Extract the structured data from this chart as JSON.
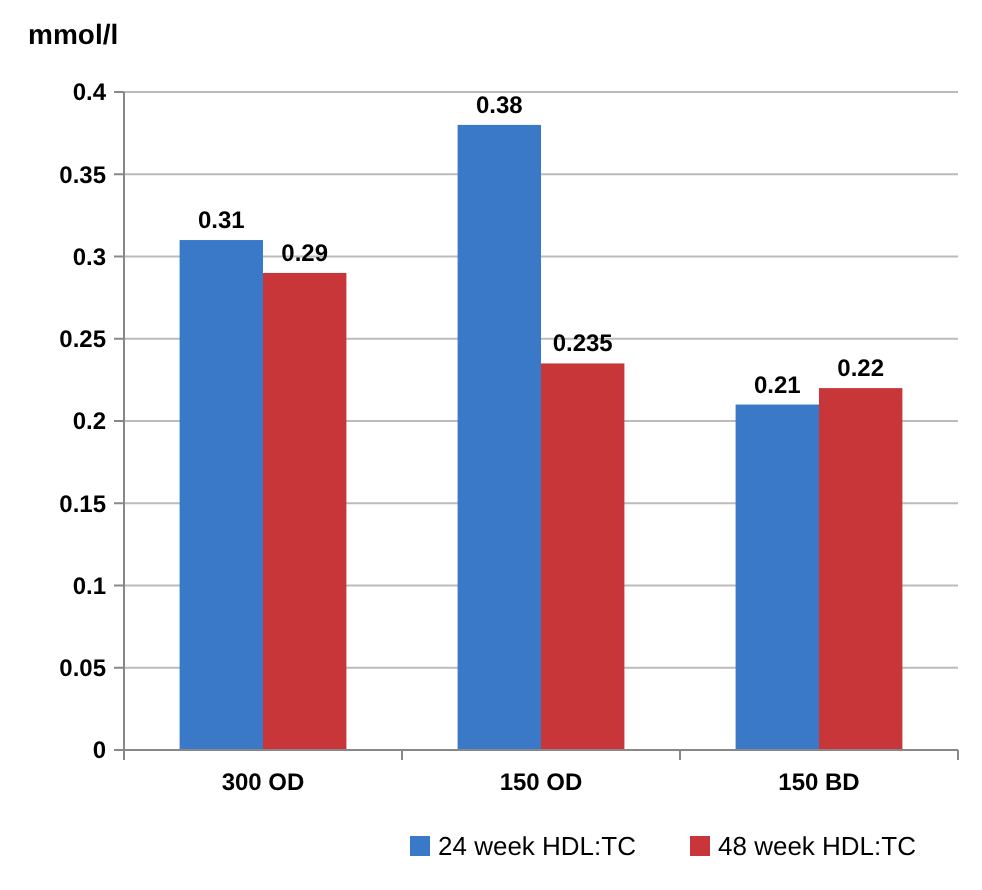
{
  "chart_data": {
    "type": "bar",
    "ylabel": "mmol/l",
    "categories": [
      "300 OD",
      "150 OD",
      "150 BD"
    ],
    "series": [
      {
        "name": "24 week HDL:TC",
        "color": "#3a78c8",
        "values": [
          0.31,
          0.38,
          0.21
        ]
      },
      {
        "name": "48 week HDL:TC",
        "color": "#c9363a",
        "values": [
          0.29,
          0.235,
          0.22
        ]
      }
    ],
    "ylim": [
      0,
      0.4
    ],
    "yticks": [
      0,
      0.05,
      0.1,
      0.15,
      0.2,
      0.25,
      0.3,
      0.35,
      0.4
    ],
    "grid": true,
    "legend": "bottom",
    "data_labels": true
  }
}
